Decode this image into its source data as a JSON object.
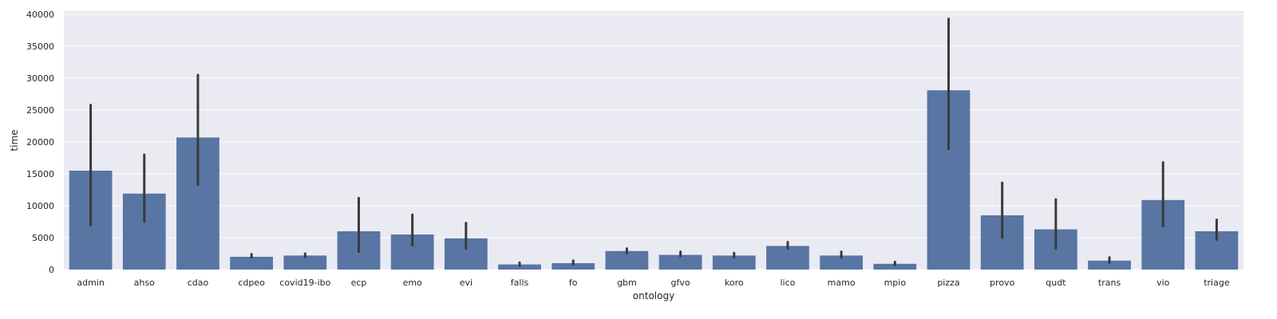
{
  "chart_data": {
    "type": "bar",
    "xlabel": "ontology",
    "ylabel": "time",
    "ylim": [
      0,
      40500
    ],
    "yticks": [
      0,
      5000,
      10000,
      15000,
      20000,
      25000,
      30000,
      35000,
      40000
    ],
    "grid": true,
    "categories": [
      "admin",
      "ahso",
      "cdao",
      "cdpeo",
      "covid19-ibo",
      "ecp",
      "emo",
      "evi",
      "falls",
      "fo",
      "gbm",
      "gfvo",
      "koro",
      "lico",
      "mamo",
      "mpio",
      "pizza",
      "provo",
      "qudt",
      "trans",
      "vio",
      "triage"
    ],
    "values": [
      15500,
      11900,
      20700,
      2000,
      2200,
      6000,
      5500,
      4900,
      800,
      1000,
      2900,
      2300,
      2200,
      3700,
      2200,
      900,
      28100,
      8500,
      6300,
      1400,
      10900,
      6000
    ],
    "error_bars": [
      [
        7000,
        25800
      ],
      [
        7500,
        18000
      ],
      [
        13300,
        30500
      ],
      [
        1900,
        2400
      ],
      [
        2000,
        2500
      ],
      [
        2800,
        11200
      ],
      [
        3800,
        8600
      ],
      [
        3300,
        7300
      ],
      [
        600,
        1100
      ],
      [
        800,
        1400
      ],
      [
        2600,
        3300
      ],
      [
        2100,
        2800
      ],
      [
        1900,
        2600
      ],
      [
        3300,
        4300
      ],
      [
        1900,
        2800
      ],
      [
        700,
        1200
      ],
      [
        18900,
        39300
      ],
      [
        5000,
        13600
      ],
      [
        3300,
        11000
      ],
      [
        1100,
        1900
      ],
      [
        6800,
        16800
      ],
      [
        4700,
        7800
      ]
    ],
    "colors": {
      "bar": "#5875a4",
      "error_bar": "#3a3a3a",
      "background": "#eaeaf2",
      "grid": "#ffffff"
    }
  }
}
